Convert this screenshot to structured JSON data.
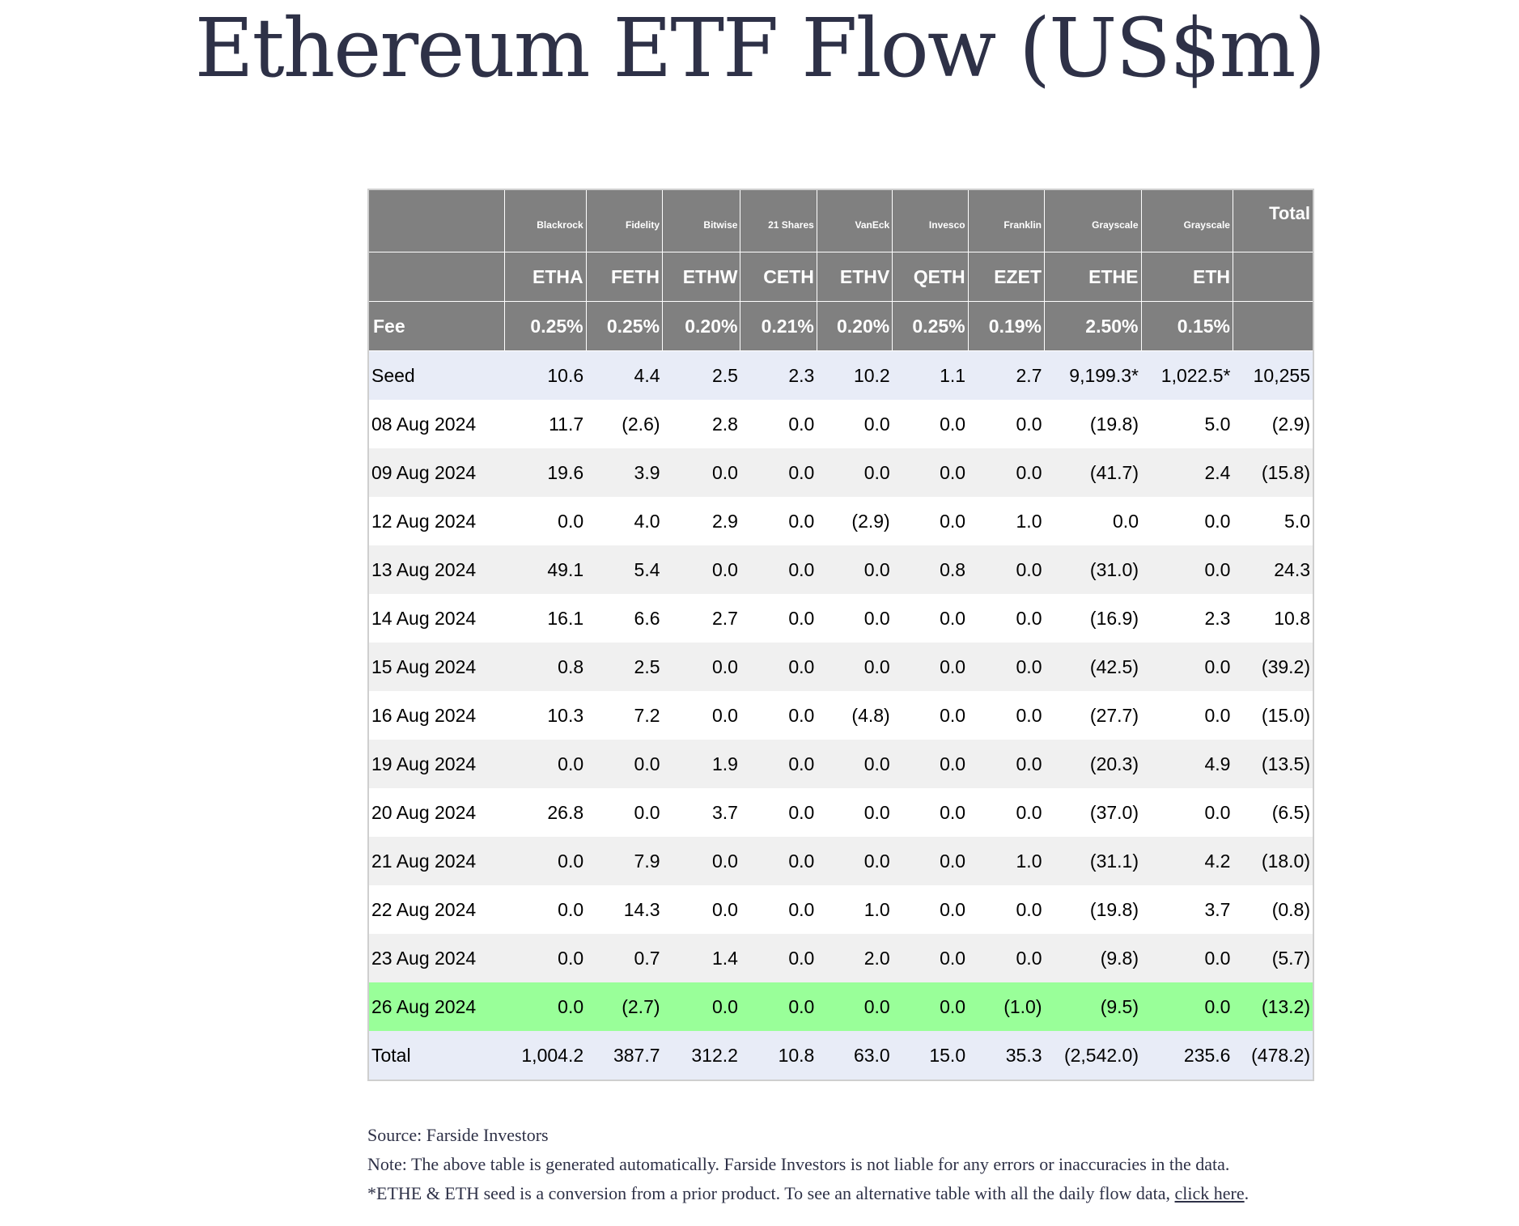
{
  "title": "Ethereum ETF Flow (US$m)",
  "chart_data": {
    "type": "table",
    "title": "Ethereum ETF Flow (US$m)",
    "issuers": [
      "Blackrock",
      "Fidelity",
      "Bitwise",
      "21 Shares",
      "VanEck",
      "Invesco",
      "Franklin",
      "Grayscale",
      "Grayscale"
    ],
    "total_header": "Total",
    "tickers": [
      "ETHA",
      "FETH",
      "ETHW",
      "CETH",
      "ETHV",
      "QETH",
      "EZET",
      "ETHE",
      "ETH"
    ],
    "fee_label": "Fee",
    "fees": [
      "0.25%",
      "0.25%",
      "0.20%",
      "0.21%",
      "0.20%",
      "0.25%",
      "0.19%",
      "2.50%",
      "0.15%"
    ],
    "rows": [
      {
        "label": "Seed",
        "kind": "seed",
        "cells": [
          "10.6",
          "4.4",
          "2.5",
          "2.3",
          "10.2",
          "1.1",
          "2.7",
          "9,199.3*",
          "1,022.5*",
          "10,255"
        ]
      },
      {
        "label": "08 Aug 2024",
        "kind": "even",
        "cells": [
          "11.7",
          "(2.6)",
          "2.8",
          "0.0",
          "0.0",
          "0.0",
          "0.0",
          "(19.8)",
          "5.0",
          "(2.9)"
        ]
      },
      {
        "label": "09 Aug 2024",
        "kind": "odd",
        "cells": [
          "19.6",
          "3.9",
          "0.0",
          "0.0",
          "0.0",
          "0.0",
          "0.0",
          "(41.7)",
          "2.4",
          "(15.8)"
        ]
      },
      {
        "label": "12 Aug 2024",
        "kind": "even",
        "cells": [
          "0.0",
          "4.0",
          "2.9",
          "0.0",
          "(2.9)",
          "0.0",
          "1.0",
          "0.0",
          "0.0",
          "5.0"
        ]
      },
      {
        "label": "13 Aug 2024",
        "kind": "odd",
        "cells": [
          "49.1",
          "5.4",
          "0.0",
          "0.0",
          "0.0",
          "0.8",
          "0.0",
          "(31.0)",
          "0.0",
          "24.3"
        ]
      },
      {
        "label": "14 Aug 2024",
        "kind": "even",
        "cells": [
          "16.1",
          "6.6",
          "2.7",
          "0.0",
          "0.0",
          "0.0",
          "0.0",
          "(16.9)",
          "2.3",
          "10.8"
        ]
      },
      {
        "label": "15 Aug 2024",
        "kind": "odd",
        "cells": [
          "0.8",
          "2.5",
          "0.0",
          "0.0",
          "0.0",
          "0.0",
          "0.0",
          "(42.5)",
          "0.0",
          "(39.2)"
        ]
      },
      {
        "label": "16 Aug 2024",
        "kind": "even",
        "cells": [
          "10.3",
          "7.2",
          "0.0",
          "0.0",
          "(4.8)",
          "0.0",
          "0.0",
          "(27.7)",
          "0.0",
          "(15.0)"
        ]
      },
      {
        "label": "19 Aug 2024",
        "kind": "odd",
        "cells": [
          "0.0",
          "0.0",
          "1.9",
          "0.0",
          "0.0",
          "0.0",
          "0.0",
          "(20.3)",
          "4.9",
          "(13.5)"
        ]
      },
      {
        "label": "20 Aug 2024",
        "kind": "even",
        "cells": [
          "26.8",
          "0.0",
          "3.7",
          "0.0",
          "0.0",
          "0.0",
          "0.0",
          "(37.0)",
          "0.0",
          "(6.5)"
        ]
      },
      {
        "label": "21 Aug 2024",
        "kind": "odd",
        "cells": [
          "0.0",
          "7.9",
          "0.0",
          "0.0",
          "0.0",
          "0.0",
          "1.0",
          "(31.1)",
          "4.2",
          "(18.0)"
        ]
      },
      {
        "label": "22 Aug 2024",
        "kind": "even",
        "cells": [
          "0.0",
          "14.3",
          "0.0",
          "0.0",
          "1.0",
          "0.0",
          "0.0",
          "(19.8)",
          "3.7",
          "(0.8)"
        ]
      },
      {
        "label": "23 Aug 2024",
        "kind": "odd",
        "cells": [
          "0.0",
          "0.7",
          "1.4",
          "0.0",
          "2.0",
          "0.0",
          "0.0",
          "(9.8)",
          "0.0",
          "(5.7)"
        ]
      },
      {
        "label": "26 Aug 2024",
        "kind": "highlight",
        "cells": [
          "0.0",
          "(2.7)",
          "0.0",
          "0.0",
          "0.0",
          "0.0",
          "(1.0)",
          "(9.5)",
          "0.0",
          "(13.2)"
        ]
      },
      {
        "label": "Total",
        "kind": "total",
        "cells": [
          "1,004.2",
          "387.7",
          "312.2",
          "10.8",
          "63.0",
          "15.0",
          "35.3",
          "(2,542.0)",
          "235.6",
          "(478.2)"
        ]
      }
    ]
  },
  "colors": {
    "header_bg": "#808080",
    "negative": "#e00000",
    "highlight_row": "#99ff99",
    "seed_total_row": "#e8ecf7",
    "odd_row": "#f0f0f0",
    "title": "#2e3147"
  },
  "notes": {
    "source": "Source: Farside Investors",
    "note": "Note: The above table is generated automatically. Farside Investors is not liable for any errors or inaccuracies in the data.",
    "seed_note": "*ETHE & ETH seed is a conversion from a prior product.  To see an alternative table with all the daily flow data,",
    "link_text": "click here",
    "period": "."
  }
}
